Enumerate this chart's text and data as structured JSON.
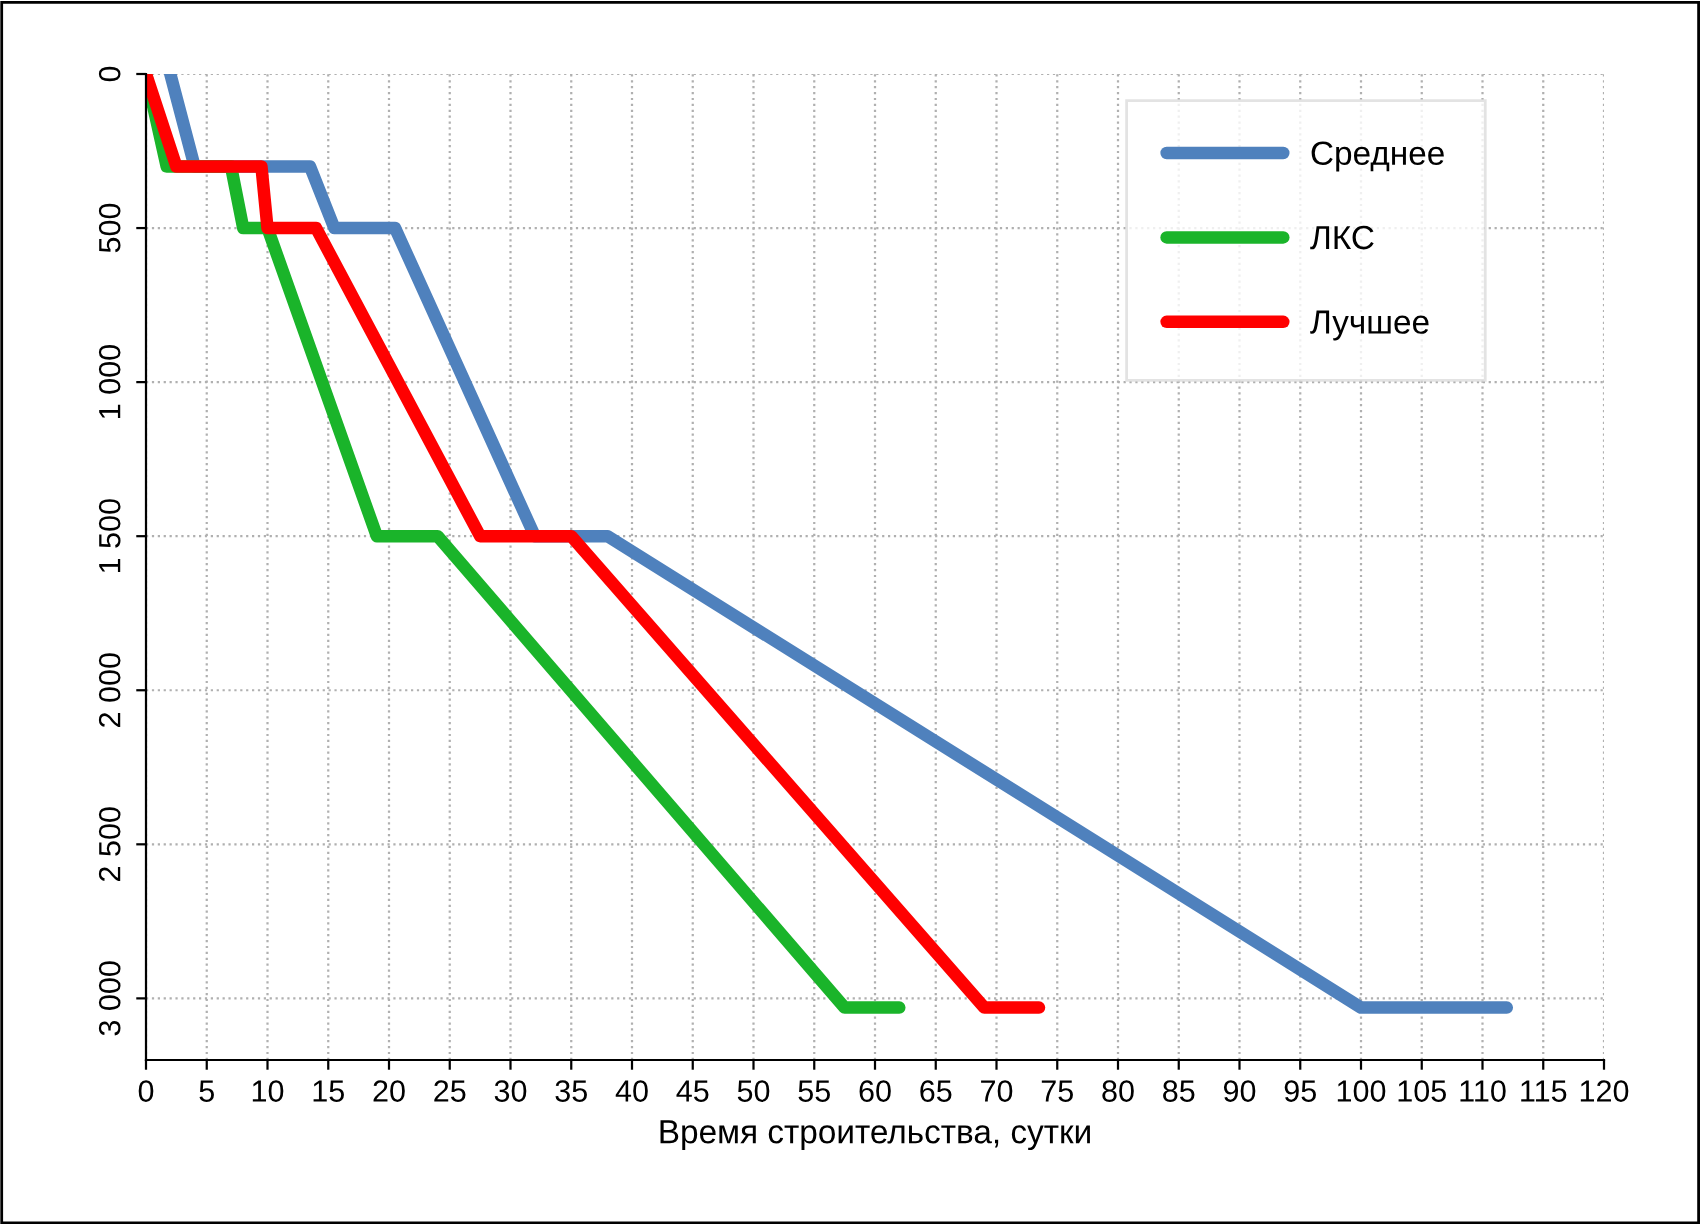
{
  "chart_data": {
    "type": "line",
    "xlabel": "Время строительства, сутки",
    "xlim": [
      0,
      120
    ],
    "xticks": [
      0,
      5,
      10,
      15,
      20,
      25,
      30,
      35,
      40,
      45,
      50,
      55,
      60,
      65,
      70,
      75,
      80,
      85,
      90,
      95,
      100,
      105,
      110,
      115,
      120
    ],
    "ylim": [
      3200,
      0
    ],
    "yticks": [
      0,
      500,
      {
        "value": 1000,
        "label": "1 000"
      },
      {
        "value": 1500,
        "label": "1 500"
      },
      {
        "value": 2000,
        "label": "2 000"
      },
      {
        "value": 2500,
        "label": "2 500"
      },
      {
        "value": 3000,
        "label": "3 000"
      }
    ],
    "grid": true,
    "legend": "top right",
    "marker": "none",
    "line_style": "solid",
    "series": [
      {
        "name": "Среднее",
        "color": "#4f81bd",
        "x": [
          2,
          4,
          13.5,
          15.5,
          20.5,
          32,
          38,
          100,
          112
        ],
        "values": [
          0,
          300,
          300,
          500,
          500,
          1500,
          1500,
          3030,
          3030
        ]
      },
      {
        "name": "ЛКС",
        "color": "#1ab42a",
        "x": [
          0,
          1.7,
          7,
          8,
          10,
          19,
          24,
          57.5,
          62
        ],
        "values": [
          0,
          300,
          300,
          500,
          500,
          1500,
          1500,
          3030,
          3030
        ]
      },
      {
        "name": "Лучшее",
        "color": "#ff0000",
        "x": [
          0,
          2.5,
          9.5,
          10,
          14,
          27.5,
          35,
          69,
          73.5
        ],
        "values": [
          0,
          300,
          300,
          500,
          500,
          1500,
          1500,
          3030,
          3030
        ]
      }
    ]
  }
}
